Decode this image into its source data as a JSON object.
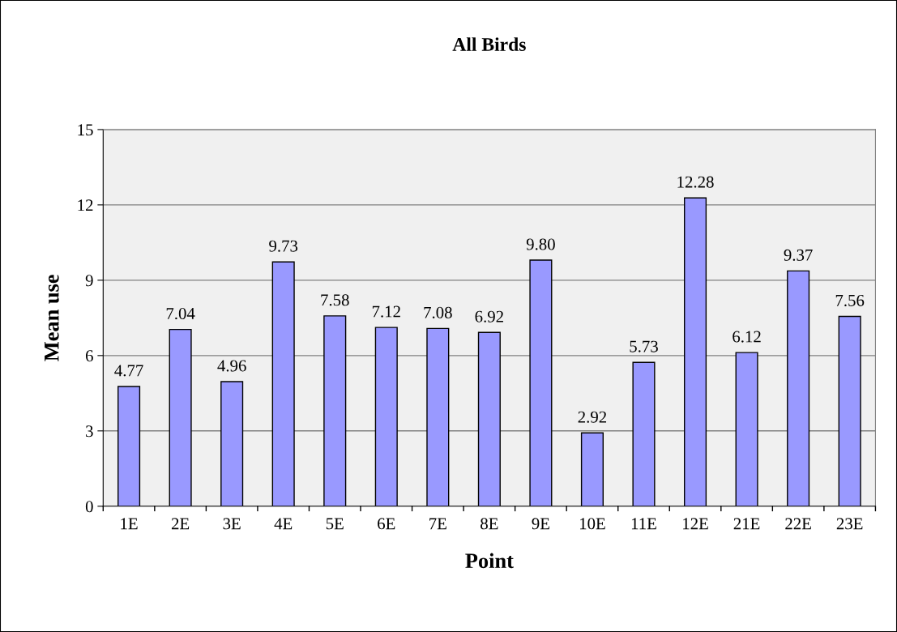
{
  "chart_data": {
    "type": "bar",
    "title": "All Birds",
    "xlabel": "Point",
    "ylabel": "Mean use",
    "categories": [
      "1E",
      "2E",
      "3E",
      "4E",
      "5E",
      "6E",
      "7E",
      "8E",
      "9E",
      "10E",
      "11E",
      "12E",
      "21E",
      "22E",
      "23E"
    ],
    "values": [
      4.77,
      7.04,
      4.96,
      9.73,
      7.58,
      7.12,
      7.08,
      6.92,
      9.8,
      2.92,
      5.73,
      12.28,
      6.12,
      9.37,
      7.56
    ],
    "value_labels": [
      "4.77",
      "7.04",
      "4.96",
      "9.73",
      "7.58",
      "7.12",
      "7.08",
      "6.92",
      "9.80",
      "2.92",
      "5.73",
      "12.28",
      "6.12",
      "9.37",
      "7.56"
    ],
    "color": "#9999ff",
    "ylim": [
      0,
      15
    ],
    "yticks": [
      0,
      3,
      6,
      9,
      12,
      15
    ],
    "grid": "y"
  }
}
